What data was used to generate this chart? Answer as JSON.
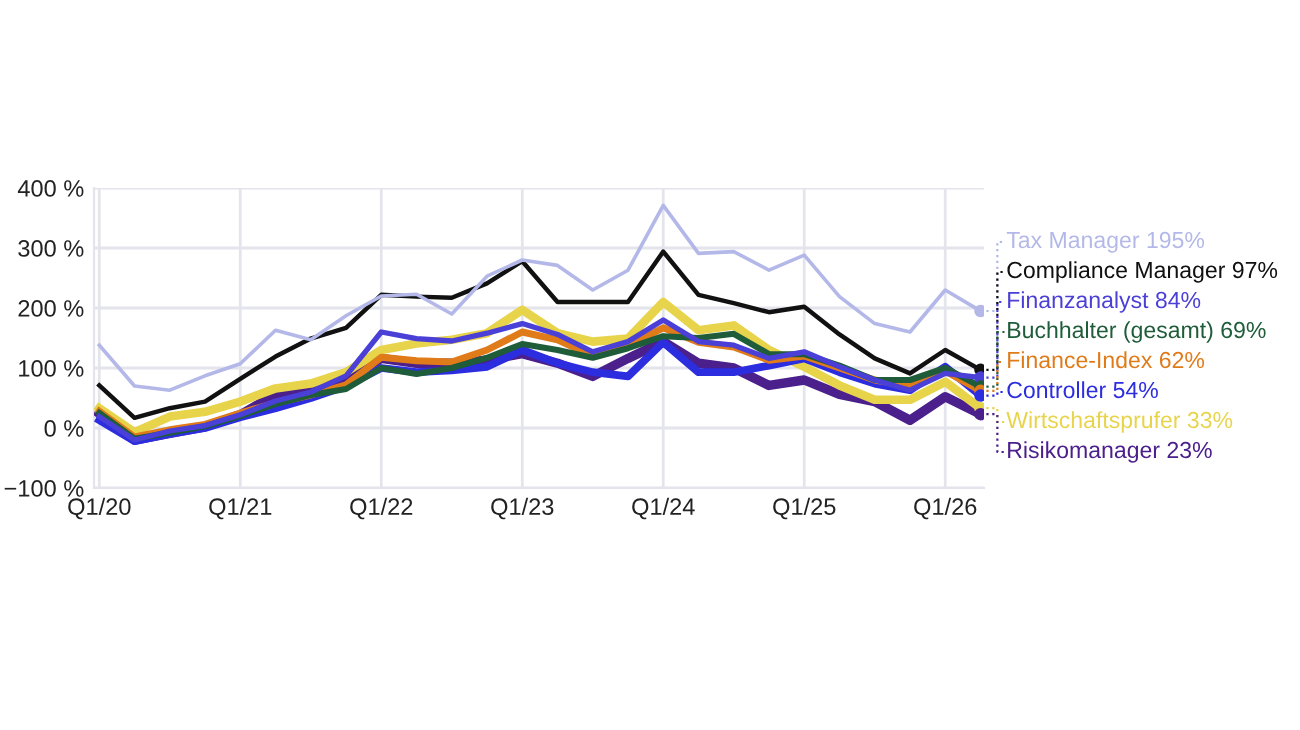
{
  "chart_data": {
    "type": "line",
    "categories": [
      "Q1/20",
      null,
      null,
      null,
      "Q1/21",
      null,
      null,
      null,
      "Q1/22",
      null,
      null,
      null,
      "Q1/23",
      null,
      null,
      null,
      "Q1/24",
      null,
      null,
      null,
      "Q1/25",
      null,
      null,
      null,
      "Q1/26",
      null
    ],
    "ylim": [
      -100,
      400
    ],
    "yticks": [
      {
        "value": -100,
        "label": "−100 %"
      },
      {
        "value": 0,
        "label": "0 %"
      },
      {
        "value": 100,
        "label": "100 %"
      },
      {
        "value": 200,
        "label": "200 %"
      },
      {
        "value": 300,
        "label": "300 %"
      },
      {
        "value": 400,
        "label": "400 %"
      }
    ],
    "grid": true,
    "legend": false,
    "marker": "none",
    "line_style": "solid",
    "series": [
      {
        "name": "Tax Manager",
        "color": "#b3b8e8",
        "values": [
          138,
          70,
          63,
          87,
          107,
          163,
          147,
          187,
          220,
          223,
          190,
          253,
          280,
          271,
          230,
          263,
          371,
          291,
          294,
          263,
          288,
          219,
          174,
          160,
          230,
          195
        ],
        "value_labels": [
          null,
          null,
          null,
          null,
          null,
          null,
          null,
          null,
          null,
          null,
          null,
          null,
          null,
          null,
          null,
          null,
          null,
          null,
          null,
          null,
          null,
          null,
          null,
          null,
          null,
          "195%"
        ]
      },
      {
        "name": "Compliance Manager",
        "color": "#111111",
        "values": [
          71,
          17,
          33,
          44,
          82,
          119,
          149,
          167,
          222,
          219,
          217,
          241,
          278,
          210,
          210,
          210,
          294,
          222,
          208,
          193,
          202,
          156,
          116,
          91,
          130,
          97
        ],
        "value_labels": [
          null,
          null,
          null,
          null,
          null,
          null,
          null,
          null,
          null,
          null,
          null,
          null,
          null,
          null,
          null,
          null,
          null,
          null,
          null,
          null,
          null,
          null,
          null,
          null,
          null,
          "97%"
        ]
      },
      {
        "name": "Finanzanalyst",
        "color": "#4a3fd6",
        "values": [
          19,
          -20,
          -5,
          4,
          22,
          45,
          60,
          87,
          160,
          149,
          145,
          158,
          174,
          156,
          127,
          144,
          180,
          144,
          138,
          116,
          127,
          102,
          80,
          63,
          91,
          84
        ],
        "value_labels": [
          null,
          null,
          null,
          null,
          null,
          null,
          null,
          null,
          null,
          null,
          null,
          null,
          null,
          null,
          null,
          null,
          null,
          null,
          null,
          null,
          null,
          null,
          null,
          null,
          null,
          "84%"
        ]
      },
      {
        "name": "Buchhalter (gesamt)",
        "color": "#1f5c3a",
        "values": [
          25,
          -18,
          -8,
          3,
          20,
          40,
          55,
          65,
          100,
          90,
          100,
          117,
          140,
          130,
          117,
          133,
          153,
          150,
          157,
          123,
          123,
          104,
          80,
          80,
          100,
          69
        ],
        "value_labels": [
          null,
          null,
          null,
          null,
          null,
          null,
          null,
          null,
          null,
          null,
          null,
          null,
          null,
          null,
          null,
          null,
          null,
          null,
          null,
          null,
          null,
          null,
          null,
          null,
          null,
          "69%"
        ]
      },
      {
        "name": "Finance-Index",
        "color": "#e07b1a",
        "values": [
          28,
          -15,
          -3,
          6,
          25,
          42,
          55,
          72,
          118,
          112,
          110,
          130,
          160,
          147,
          120,
          137,
          167,
          143,
          135,
          113,
          120,
          100,
          80,
          70,
          95,
          62
        ],
        "value_labels": [
          null,
          null,
          null,
          null,
          null,
          null,
          null,
          null,
          null,
          null,
          null,
          null,
          null,
          null,
          null,
          null,
          null,
          null,
          null,
          null,
          null,
          null,
          null,
          null,
          null,
          "62%"
        ]
      },
      {
        "name": "Controller",
        "color": "#2d2de0",
        "values": [
          13,
          -22,
          -10,
          0,
          18,
          33,
          50,
          70,
          100,
          93,
          96,
          102,
          130,
          108,
          93,
          86,
          143,
          93,
          93,
          104,
          116,
          93,
          74,
          63,
          102,
          54
        ],
        "value_labels": [
          null,
          null,
          null,
          null,
          null,
          null,
          null,
          null,
          null,
          null,
          null,
          null,
          null,
          null,
          null,
          null,
          null,
          null,
          null,
          null,
          null,
          null,
          null,
          null,
          null,
          "54%"
        ]
      },
      {
        "name": "Wirtschaftsprufer",
        "color": "#e8d44a",
        "values": [
          33,
          -7,
          19,
          27,
          44,
          66,
          74,
          93,
          130,
          141,
          147,
          158,
          197,
          158,
          144,
          149,
          210,
          163,
          171,
          130,
          102,
          71,
          47,
          47,
          77,
          33
        ],
        "value_labels": [
          null,
          null,
          null,
          null,
          null,
          null,
          null,
          null,
          null,
          null,
          null,
          null,
          null,
          null,
          null,
          null,
          null,
          null,
          null,
          null,
          null,
          null,
          null,
          null,
          null,
          "33%"
        ]
      },
      {
        "name": "Risikomanager",
        "color": "#4b1f8c",
        "values": [
          24,
          -20,
          -9,
          2,
          22,
          56,
          69,
          82,
          116,
          108,
          108,
          113,
          124,
          108,
          86,
          116,
          144,
          108,
          100,
          71,
          80,
          56,
          44,
          13,
          52,
          23
        ],
        "value_labels": [
          null,
          null,
          null,
          null,
          null,
          null,
          null,
          null,
          null,
          null,
          null,
          null,
          null,
          null,
          null,
          null,
          null,
          null,
          null,
          null,
          null,
          null,
          null,
          null,
          null,
          "23%"
        ]
      }
    ]
  }
}
